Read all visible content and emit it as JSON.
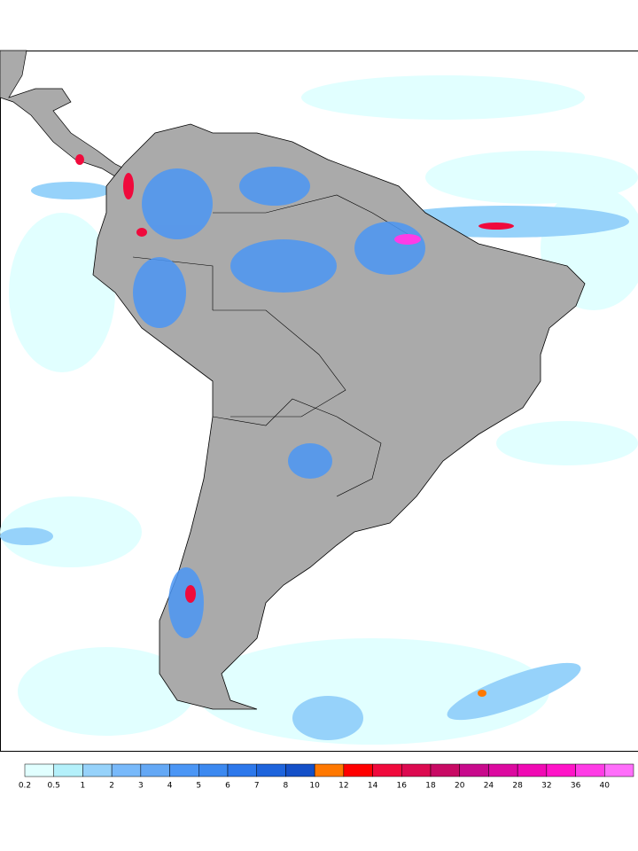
{
  "colorbar": {
    "ticks": [
      0.2,
      0.5,
      1,
      2,
      3,
      4,
      5,
      6,
      7,
      8,
      10,
      12,
      14,
      16,
      18,
      20,
      24,
      28,
      32,
      36,
      40
    ],
    "colors": [
      "#e1ffff",
      "#b4f0fa",
      "#96d2fa",
      "#78b9fa",
      "#64a8f5",
      "#4b96f5",
      "#3c89f0",
      "#2d78eb",
      "#1e64dc",
      "#1450c8",
      "#ff7800",
      "#ff0000",
      "#f00a3c",
      "#dc0a50",
      "#c80a64",
      "#c80a8c",
      "#dc0aa0",
      "#f00ab4",
      "#ff14c8",
      "#ff3ce6",
      "#ff6efa"
    ]
  }
}
